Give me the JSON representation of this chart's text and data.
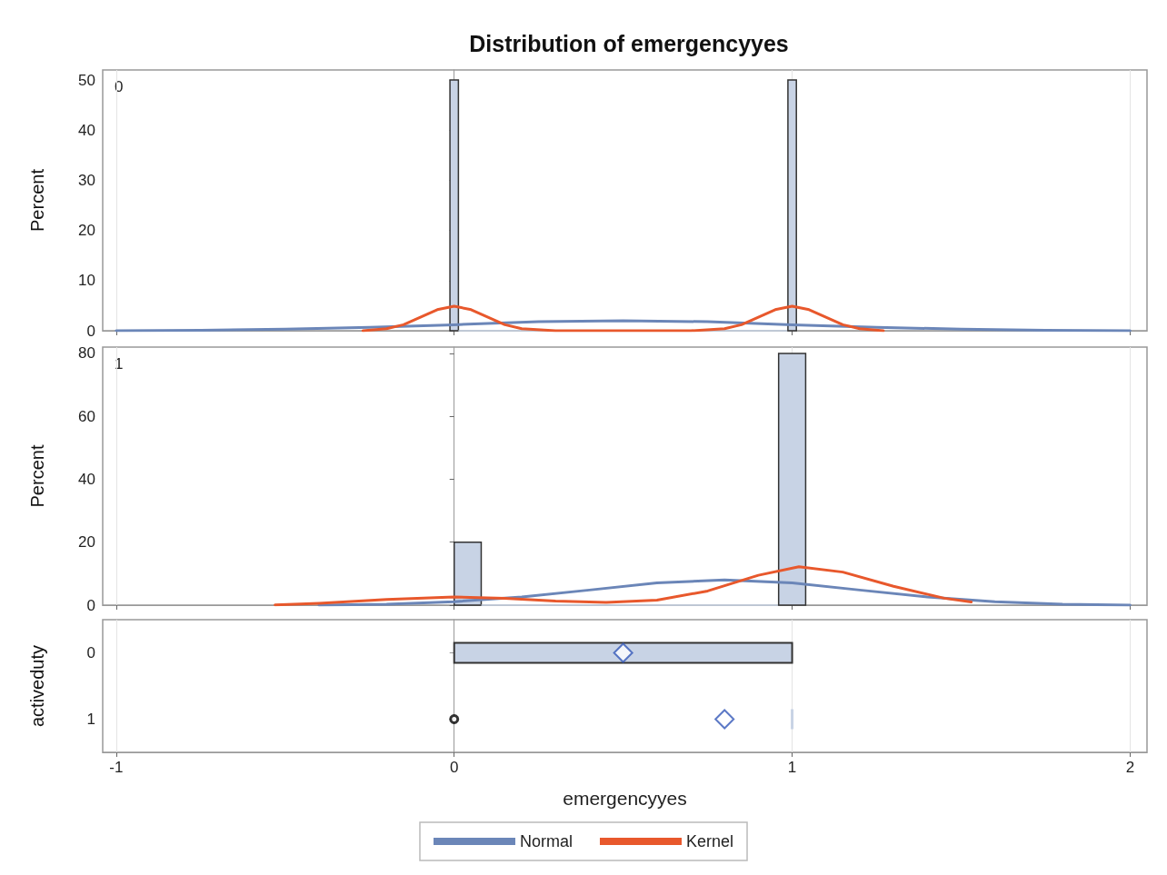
{
  "chart_data": [
    {
      "type": "histogram",
      "title": "Distribution of emergencyyes",
      "ylabel": "Percent",
      "annotations": [
        "0"
      ],
      "bins": [
        -0.0125,
        0.0125,
        0.9875,
        1.0125
      ],
      "values": [
        50,
        0,
        50
      ],
      "color": "#c8d3e5",
      "xlim": [
        -1.04,
        2.05
      ],
      "xticks": [
        -1,
        0,
        1,
        2
      ],
      "ylim": [
        0,
        52
      ],
      "yticks": [
        0,
        10,
        20,
        30,
        40,
        50
      ],
      "grid": "x",
      "tick_labels": "y",
      "series": [
        {
          "type": "line",
          "color": "#6b86b8",
          "x": [
            -1,
            -0.75,
            -0.5,
            -0.25,
            0,
            0.25,
            0.5,
            0.75,
            1,
            1.25,
            1.5,
            1.75,
            2
          ],
          "values": [
            0,
            0.1,
            0.3,
            0.7,
            1.2,
            1.8,
            2,
            1.8,
            1.2,
            0.7,
            0.3,
            0.1,
            0
          ]
        },
        {
          "type": "line",
          "color": "#e8582c",
          "x": [
            -0.27,
            -0.2,
            -0.15,
            -0.1,
            -0.05,
            0,
            0.05,
            0.1,
            0.15,
            0.2,
            0.3,
            0.5,
            0.7,
            0.8,
            0.85,
            0.9,
            0.95,
            1,
            1.05,
            1.1,
            1.15,
            1.2,
            1.27
          ],
          "values": [
            0,
            0.4,
            1.2,
            2.7,
            4.2,
            4.9,
            4.2,
            2.7,
            1.2,
            0.4,
            0,
            0,
            0,
            0.4,
            1.2,
            2.7,
            4.2,
            4.9,
            4.2,
            2.7,
            1.2,
            0.4,
            0
          ]
        }
      ]
    },
    {
      "type": "histogram",
      "ylabel": "Percent",
      "annotations": [
        "1"
      ],
      "bins": [
        0,
        0.08,
        0.96,
        1.04
      ],
      "values": [
        20,
        0,
        80
      ],
      "color": "#c8d3e5",
      "xlim": [
        -1.04,
        2.05
      ],
      "xticks": [
        -1,
        0,
        1,
        2
      ],
      "ylim": [
        0,
        82
      ],
      "yticks": [
        0,
        20,
        40,
        60,
        80
      ],
      "grid": "x",
      "tick_labels": "y",
      "legend": "bottom",
      "series": [
        {
          "type": "line",
          "name": "Normal",
          "color": "#6b86b8",
          "x": [
            -0.4,
            -0.2,
            0,
            0.2,
            0.4,
            0.6,
            0.8,
            1,
            1.2,
            1.4,
            1.6,
            1.8,
            2
          ],
          "values": [
            0,
            0.3,
            1.1,
            2.6,
            4.8,
            7.1,
            8,
            7.1,
            4.8,
            2.6,
            1.1,
            0.3,
            0
          ]
        },
        {
          "type": "line",
          "name": "Kernel",
          "color": "#e8582c",
          "x": [
            -0.53,
            -0.4,
            -0.2,
            0,
            0.15,
            0.3,
            0.45,
            0.6,
            0.75,
            0.9,
            1.02,
            1.15,
            1.3,
            1.45,
            1.53
          ],
          "values": [
            0.1,
            0.6,
            1.8,
            2.6,
            2.2,
            1.3,
            0.9,
            1.6,
            4.5,
            9.5,
            12.2,
            10.5,
            6,
            2.2,
            1
          ]
        }
      ]
    },
    {
      "type": "box",
      "orientation": "horizontal",
      "xlabel": "emergencyyes",
      "ylabel": "activeduty",
      "categories": [
        "0",
        "1"
      ],
      "color": "#c8d3e5",
      "xlim": [
        -1.04,
        2.05
      ],
      "xticks": [
        -1,
        0,
        1,
        2
      ],
      "grid": "x",
      "boxes": [
        {
          "low": 0,
          "q1": 0,
          "median": 0,
          "q3": 1,
          "high": 1,
          "mean": 0.5
        },
        {
          "low": 1,
          "q1": 1,
          "median": 1,
          "q3": 1,
          "high": 1,
          "mean": 0.8,
          "outliers": [
            0
          ]
        }
      ]
    }
  ]
}
